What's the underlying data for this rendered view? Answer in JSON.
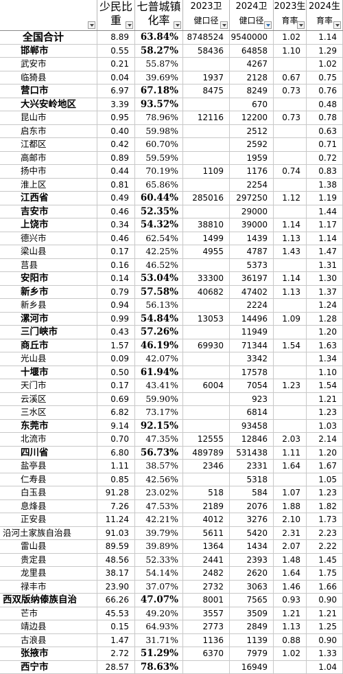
{
  "headers": [
    {
      "line1": "",
      "line2": "",
      "filter": false
    },
    {
      "line1": "少民比",
      "line2": "重",
      "filter": false
    },
    {
      "line1": "七普城镇",
      "line2": "化率",
      "filter": false
    },
    {
      "line1": "2023卫",
      "line2": "健口径",
      "filter": false
    },
    {
      "line1": "2024卫",
      "line2": "健口径",
      "filter": true
    },
    {
      "line1": "2023生",
      "line2": "育率",
      "filter": false
    },
    {
      "line1": "2024生",
      "line2": "育率",
      "filter": false
    }
  ],
  "rows": [
    {
      "name": "全国合计",
      "share": "8.89",
      "urban": "63.84%",
      "wj2023": "8748524",
      "wj2024": "9540000",
      "tfr2023": "1.02",
      "tfr2024": "1.14",
      "bold": true
    },
    {
      "name": "邯郸市",
      "share": "0.55",
      "urban": "58.27%",
      "wj2023": "58436",
      "wj2024": "64858",
      "tfr2023": "1.10",
      "tfr2024": "1.29",
      "bold": true
    },
    {
      "name": "武安市",
      "share": "0.21",
      "urban": "55.87%",
      "wj2023": "",
      "wj2024": "4267",
      "tfr2023": "",
      "tfr2024": "1.02",
      "bold": false
    },
    {
      "name": "临猗县",
      "share": "0.04",
      "urban": "39.69%",
      "wj2023": "1937",
      "wj2024": "2128",
      "tfr2023": "0.67",
      "tfr2024": "0.75",
      "bold": false
    },
    {
      "name": "营口市",
      "share": "6.97",
      "urban": "67.18%",
      "wj2023": "8475",
      "wj2024": "8249",
      "tfr2023": "0.73",
      "tfr2024": "0.76",
      "bold": true
    },
    {
      "name": "大兴安岭地区",
      "share": "3.39",
      "urban": "93.57%",
      "wj2023": "",
      "wj2024": "670",
      "tfr2023": "",
      "tfr2024": "0.48",
      "bold": true
    },
    {
      "name": "昆山市",
      "share": "0.95",
      "urban": "78.96%",
      "wj2023": "12116",
      "wj2024": "12200",
      "tfr2023": "0.73",
      "tfr2024": "0.78",
      "bold": false
    },
    {
      "name": "启东市",
      "share": "0.40",
      "urban": "59.98%",
      "wj2023": "",
      "wj2024": "2512",
      "tfr2023": "",
      "tfr2024": "0.63",
      "bold": false
    },
    {
      "name": "江都区",
      "share": "0.42",
      "urban": "60.70%",
      "wj2023": "",
      "wj2024": "2592",
      "tfr2023": "",
      "tfr2024": "0.71",
      "bold": false
    },
    {
      "name": "高邮市",
      "share": "0.89",
      "urban": "59.59%",
      "wj2023": "",
      "wj2024": "1959",
      "tfr2023": "",
      "tfr2024": "0.72",
      "bold": false
    },
    {
      "name": "扬中市",
      "share": "0.44",
      "urban": "70.19%",
      "wj2023": "1109",
      "wj2024": "1176",
      "tfr2023": "0.74",
      "tfr2024": "0.83",
      "bold": false
    },
    {
      "name": "淮上区",
      "share": "0.81",
      "urban": "65.86%",
      "wj2023": "",
      "wj2024": "2254",
      "tfr2023": "",
      "tfr2024": "1.38",
      "bold": false
    },
    {
      "name": "江西省",
      "share": "0.49",
      "urban": "60.44%",
      "wj2023": "285016",
      "wj2024": "297250",
      "tfr2023": "1.12",
      "tfr2024": "1.19",
      "bold": true
    },
    {
      "name": "吉安市",
      "share": "0.46",
      "urban": "52.35%",
      "wj2023": "",
      "wj2024": "29000",
      "tfr2023": "",
      "tfr2024": "1.44",
      "bold": true
    },
    {
      "name": "上饶市",
      "share": "0.34",
      "urban": "54.32%",
      "wj2023": "38810",
      "wj2024": "39000",
      "tfr2023": "1.14",
      "tfr2024": "1.17",
      "bold": true
    },
    {
      "name": "德兴市",
      "share": "0.46",
      "urban": "62.54%",
      "wj2023": "1499",
      "wj2024": "1439",
      "tfr2023": "1.13",
      "tfr2024": "1.14",
      "bold": false
    },
    {
      "name": "梁山县",
      "share": "0.17",
      "urban": "42.25%",
      "wj2023": "4955",
      "wj2024": "4787",
      "tfr2023": "1.43",
      "tfr2024": "1.47",
      "bold": false
    },
    {
      "name": "莒县",
      "share": "0.16",
      "urban": "46.52%",
      "wj2023": "",
      "wj2024": "5373",
      "tfr2023": "",
      "tfr2024": "1.31",
      "bold": false
    },
    {
      "name": "安阳市",
      "share": "0.14",
      "urban": "53.04%",
      "wj2023": "33300",
      "wj2024": "36197",
      "tfr2023": "1.14",
      "tfr2024": "1.30",
      "bold": true
    },
    {
      "name": "新乡市",
      "share": "0.79",
      "urban": "57.58%",
      "wj2023": "40682",
      "wj2024": "47402",
      "tfr2023": "1.13",
      "tfr2024": "1.37",
      "bold": true
    },
    {
      "name": "新乡县",
      "share": "0.94",
      "urban": "56.13%",
      "wj2023": "",
      "wj2024": "2224",
      "tfr2023": "",
      "tfr2024": "1.24",
      "bold": false
    },
    {
      "name": "漯河市",
      "share": "0.99",
      "urban": "54.84%",
      "wj2023": "13053",
      "wj2024": "14496",
      "tfr2023": "1.09",
      "tfr2024": "1.28",
      "bold": true
    },
    {
      "name": "三门峡市",
      "share": "0.43",
      "urban": "57.26%",
      "wj2023": "",
      "wj2024": "11949",
      "tfr2023": "",
      "tfr2024": "1.20",
      "bold": true
    },
    {
      "name": "商丘市",
      "share": "1.57",
      "urban": "46.19%",
      "wj2023": "69930",
      "wj2024": "71344",
      "tfr2023": "1.54",
      "tfr2024": "1.63",
      "bold": true
    },
    {
      "name": "光山县",
      "share": "0.09",
      "urban": "42.07%",
      "wj2023": "",
      "wj2024": "3342",
      "tfr2023": "",
      "tfr2024": "1.34",
      "bold": false
    },
    {
      "name": "十堰市",
      "share": "0.50",
      "urban": "61.94%",
      "wj2023": "",
      "wj2024": "17578",
      "tfr2023": "",
      "tfr2024": "1.10",
      "bold": true
    },
    {
      "name": "天门市",
      "share": "0.17",
      "urban": "43.41%",
      "wj2023": "6004",
      "wj2024": "7054",
      "tfr2023": "1.23",
      "tfr2024": "1.54",
      "bold": false
    },
    {
      "name": "云溪区",
      "share": "0.69",
      "urban": "59.90%",
      "wj2023": "",
      "wj2024": "923",
      "tfr2023": "",
      "tfr2024": "1.21",
      "bold": false
    },
    {
      "name": "三水区",
      "share": "6.82",
      "urban": "73.17%",
      "wj2023": "",
      "wj2024": "6814",
      "tfr2023": "",
      "tfr2024": "1.23",
      "bold": false
    },
    {
      "name": "东莞市",
      "share": "9.14",
      "urban": "92.15%",
      "wj2023": "",
      "wj2024": "93458",
      "tfr2023": "",
      "tfr2024": "1.03",
      "bold": true
    },
    {
      "name": "北流市",
      "share": "0.70",
      "urban": "47.35%",
      "wj2023": "12555",
      "wj2024": "12846",
      "tfr2023": "2.03",
      "tfr2024": "2.14",
      "bold": false
    },
    {
      "name": "四川省",
      "share": "6.80",
      "urban": "56.73%",
      "wj2023": "489789",
      "wj2024": "531438",
      "tfr2023": "1.11",
      "tfr2024": "1.20",
      "bold": true
    },
    {
      "name": "盐亭县",
      "share": "1.11",
      "urban": "38.57%",
      "wj2023": "2346",
      "wj2024": "2331",
      "tfr2023": "1.64",
      "tfr2024": "1.67",
      "bold": false
    },
    {
      "name": "仁寿县",
      "share": "0.85",
      "urban": "42.56%",
      "wj2023": "",
      "wj2024": "5318",
      "tfr2023": "",
      "tfr2024": "1.05",
      "bold": false
    },
    {
      "name": "白玉县",
      "share": "91.28",
      "urban": "23.02%",
      "wj2023": "518",
      "wj2024": "584",
      "tfr2023": "1.07",
      "tfr2024": "1.23",
      "bold": false
    },
    {
      "name": "息烽县",
      "share": "7.26",
      "urban": "47.53%",
      "wj2023": "2189",
      "wj2024": "2076",
      "tfr2023": "1.88",
      "tfr2024": "1.82",
      "bold": false
    },
    {
      "name": "正安县",
      "share": "11.24",
      "urban": "42.21%",
      "wj2023": "4012",
      "wj2024": "3276",
      "tfr2023": "2.10",
      "tfr2024": "1.73",
      "bold": false
    },
    {
      "name": "沿河土家族自治县",
      "share": "91.03",
      "urban": "39.79%",
      "wj2023": "5611",
      "wj2024": "5420",
      "tfr2023": "2.31",
      "tfr2024": "2.23",
      "bold": false,
      "wide": true
    },
    {
      "name": "雷山县",
      "share": "89.59",
      "urban": "39.89%",
      "wj2023": "1364",
      "wj2024": "1434",
      "tfr2023": "2.07",
      "tfr2024": "2.22",
      "bold": false
    },
    {
      "name": "贵定县",
      "share": "48.56",
      "urban": "52.33%",
      "wj2023": "2441",
      "wj2024": "2393",
      "tfr2023": "1.48",
      "tfr2024": "1.45",
      "bold": false
    },
    {
      "name": "龙里县",
      "share": "38.17",
      "urban": "54.14%",
      "wj2023": "2482",
      "wj2024": "2620",
      "tfr2023": "1.64",
      "tfr2024": "1.75",
      "bold": false
    },
    {
      "name": "禄丰市",
      "share": "23.90",
      "urban": "37.07%",
      "wj2023": "2732",
      "wj2024": "3063",
      "tfr2023": "1.46",
      "tfr2024": "1.66",
      "bold": false
    },
    {
      "name": "西双版纳傣族自治",
      "share": "66.26",
      "urban": "47.07%",
      "wj2023": "8001",
      "wj2024": "7565",
      "tfr2023": "0.93",
      "tfr2024": "0.90",
      "bold": true,
      "wide": true
    },
    {
      "name": "芒市",
      "share": "45.53",
      "urban": "49.20%",
      "wj2023": "3557",
      "wj2024": "3509",
      "tfr2023": "1.21",
      "tfr2024": "1.21",
      "bold": false
    },
    {
      "name": "靖边县",
      "share": "0.15",
      "urban": "64.93%",
      "wj2023": "2773",
      "wj2024": "2849",
      "tfr2023": "1.13",
      "tfr2024": "1.25",
      "bold": false
    },
    {
      "name": "古浪县",
      "share": "1.47",
      "urban": "31.71%",
      "wj2023": "1136",
      "wj2024": "1139",
      "tfr2023": "0.88",
      "tfr2024": "0.90",
      "bold": false
    },
    {
      "name": "张掖市",
      "share": "2.72",
      "urban": "51.29%",
      "wj2023": "6370",
      "wj2024": "7979",
      "tfr2023": "1.02",
      "tfr2024": "1.33",
      "bold": true
    },
    {
      "name": "西宁市",
      "share": "28.57",
      "urban": "78.63%",
      "wj2023": "",
      "wj2024": "16949",
      "tfr2023": "",
      "tfr2024": "1.04",
      "bold": true
    }
  ]
}
